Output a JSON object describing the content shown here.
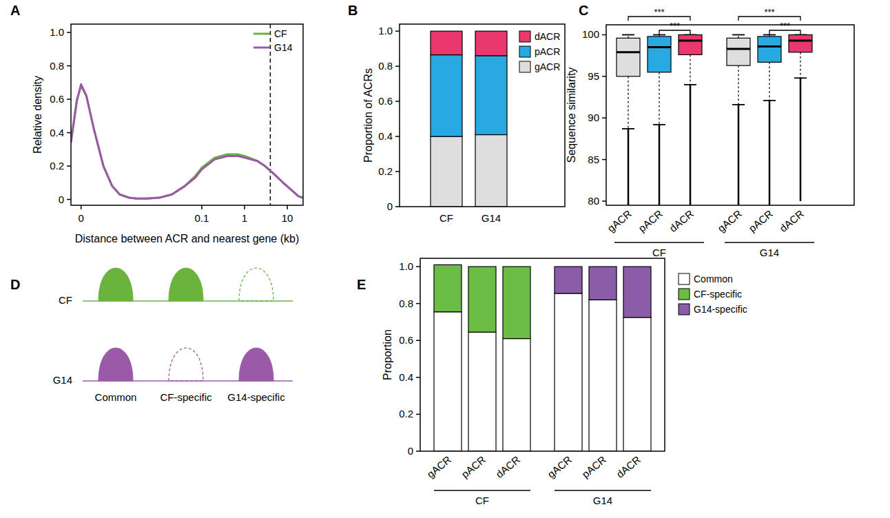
{
  "chart_data": [
    {
      "type": "line",
      "title": "A",
      "x_label": "Distance between ACR and nearest gene (kb)",
      "y_label": "Relative density",
      "log": "x",
      "x": [
        8.7e-05,
        0.00012,
        0.00015,
        0.0002,
        0.0003,
        0.0005,
        0.0008,
        0.0012,
        0.002,
        0.003,
        0.005,
        0.01,
        0.02,
        0.04,
        0.07,
        0.1,
        0.2,
        0.4,
        0.7,
        1,
        2,
        3,
        5,
        8,
        12,
        18,
        23
      ],
      "series": [
        {
          "name": "CF",
          "color": "#6ab43e",
          "values": [
            0.35,
            0.6,
            0.68,
            0.62,
            0.42,
            0.2,
            0.08,
            0.03,
            0.01,
            0.005,
            0.005,
            0.01,
            0.03,
            0.08,
            0.14,
            0.19,
            0.25,
            0.27,
            0.27,
            0.26,
            0.23,
            0.2,
            0.15,
            0.1,
            0.06,
            0.02,
            0.01
          ]
        },
        {
          "name": "G14",
          "color": "#9b5aa8",
          "values": [
            0.34,
            0.59,
            0.69,
            0.62,
            0.42,
            0.2,
            0.08,
            0.03,
            0.01,
            0.005,
            0.005,
            0.01,
            0.03,
            0.08,
            0.13,
            0.18,
            0.24,
            0.26,
            0.26,
            0.25,
            0.23,
            0.2,
            0.15,
            0.1,
            0.06,
            0.02,
            0.01
          ]
        }
      ],
      "xlim": [
        8.7e-05,
        23.4
      ],
      "xticks": [
        {
          "value": 0.00015,
          "label": "0"
        },
        0.1,
        1,
        10
      ],
      "ylim": [
        -0.035,
        1.05
      ],
      "yticks": [
        0,
        0.2,
        0.4,
        0.6,
        0.8,
        {
          "value": 1,
          "label": "1.0"
        }
      ],
      "reference_lines": [
        {
          "x": 4,
          "line_style": "dashed"
        }
      ],
      "legend": "top-right"
    },
    {
      "type": "bar",
      "stacked": true,
      "title": "B",
      "y_label": "Proportion of ACRs",
      "categories": [
        "CF",
        "G14"
      ],
      "series": [
        {
          "name": "gACR",
          "color": "#dedede",
          "values": [
            0.4,
            0.41
          ]
        },
        {
          "name": "pACR",
          "color": "#29a9e1",
          "values": [
            0.465,
            0.45
          ]
        },
        {
          "name": "dACR",
          "color": "#e8386d",
          "values": [
            0.135,
            0.14
          ]
        }
      ],
      "ylim": [
        0,
        1.04
      ],
      "yticks": [
        0,
        0.2,
        0.4,
        0.6,
        0.8,
        {
          "value": 1,
          "label": "1.0"
        }
      ],
      "legend": "top-right"
    },
    {
      "type": "box",
      "title": "C",
      "y_label": "Sequence similarity",
      "categories": [
        "gACR",
        "pACR",
        "dACR",
        "gACR",
        "pACR",
        "dACR"
      ],
      "groups": [
        "CF",
        "G14"
      ],
      "colors": [
        "#dedede",
        "#29a9e1",
        "#e8386d",
        "#dedede",
        "#29a9e1",
        "#e8386d"
      ],
      "whisker_low": [
        88.7,
        89.2,
        94.0,
        91.6,
        92.1,
        94.8
      ],
      "q1": [
        95.0,
        95.5,
        97.6,
        96.3,
        96.7,
        97.9
      ],
      "median": [
        97.9,
        98.5,
        99.3,
        98.3,
        98.6,
        99.3
      ],
      "q3": [
        99.6,
        99.8,
        100,
        99.6,
        99.8,
        100
      ],
      "whisker_high": [
        100,
        100,
        100,
        100,
        100,
        100
      ],
      "outlier_min": [
        79.5,
        79.5,
        79.5,
        79.5,
        79.5,
        80
      ],
      "ylim": [
        79.5,
        101.2
      ],
      "yticks": [
        80,
        85,
        90,
        95,
        100
      ],
      "annotations": [
        {
          "text": "***",
          "from": 0,
          "to": 2
        },
        {
          "text": "***",
          "from": 1,
          "to": 2
        },
        {
          "text": "***",
          "from": 3,
          "to": 5
        },
        {
          "text": "***",
          "from": 4,
          "to": 5
        }
      ]
    },
    {
      "type": "bar",
      "stacked": true,
      "title": "E",
      "y_label": "Proportion",
      "categories": [
        "gACR",
        "pACR",
        "dACR",
        "gACR",
        "pACR",
        "dACR"
      ],
      "groups": [
        "CF",
        "G14"
      ],
      "series": [
        {
          "name": "Common",
          "color": "#ffffff",
          "values": [
            0.755,
            0.645,
            0.61,
            0.855,
            0.82,
            0.725
          ]
        },
        {
          "name": "CF-specific",
          "color": "#6cbd45",
          "values": [
            0.255,
            0.355,
            0.39,
            null,
            null,
            null
          ]
        },
        {
          "name": "G14-specific",
          "color": "#8b5ca8",
          "values": [
            null,
            null,
            null,
            0.145,
            0.18,
            0.275
          ]
        }
      ],
      "ylim": [
        0,
        1.045
      ],
      "yticks": [
        0,
        0.2,
        0.4,
        0.6,
        0.8,
        {
          "value": 1,
          "label": "1.0"
        }
      ],
      "legend": "right"
    }
  ],
  "diagram": {
    "title": "D",
    "tracks": [
      {
        "label": "CF",
        "color": "#6ab43e",
        "present": [
          true,
          true,
          false
        ]
      },
      {
        "label": "G14",
        "color": "#9b5aa8",
        "present": [
          true,
          false,
          true
        ]
      }
    ],
    "columns": [
      "Common",
      "CF-specific",
      "G14-specific"
    ]
  }
}
